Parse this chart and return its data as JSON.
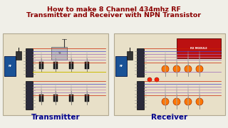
{
  "title_line1": "How to make 8 Channel 434mhz RF",
  "title_line2": "Transmitter and Receiver with NPN Transistor",
  "title_color": "#8B0000",
  "title_fontsize": 6.8,
  "bg_color": "#F0EFE8",
  "label_transmitter": "Transmitter",
  "label_receiver": "Receiver",
  "label_color": "#00008B",
  "label_fontsize": 7.5,
  "circuit_bg_tx": "#E8E0C8",
  "circuit_bg_rx": "#E8E0C8",
  "circuit_border": "#B0A890",
  "wire_red": "#CC2200",
  "wire_blue": "#4444CC",
  "wire_purple": "#9966BB",
  "wire_pink": "#CC88AA",
  "wire_yellow": "#CCBB00",
  "wire_green": "#44AA44",
  "ic_color": "#2A2A3A",
  "ic_pin_color": "#888888",
  "component_blue": "#1A5296",
  "component_red": "#BB1111",
  "transistor_color": "#1A1A1A",
  "led_orange": "#FF7700",
  "led_red": "#FF2200",
  "relay_dark": "#334455",
  "white": "#FFFFFF",
  "light_gray": "#C0C0C0",
  "dark_gray": "#555555"
}
